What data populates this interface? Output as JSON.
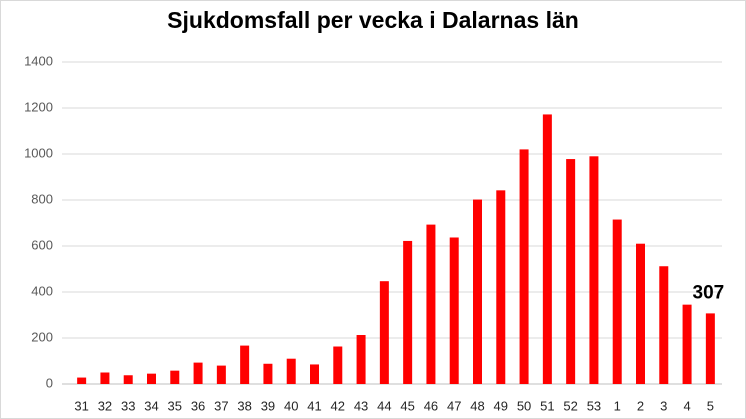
{
  "chart_data": {
    "type": "bar",
    "title": "Sjukdomsfall per vecka i Dalarnas län",
    "categories": [
      "31",
      "32",
      "33",
      "34",
      "35",
      "36",
      "37",
      "38",
      "39",
      "40",
      "41",
      "42",
      "43",
      "44",
      "45",
      "46",
      "47",
      "48",
      "49",
      "50",
      "51",
      "52",
      "53",
      "1",
      "2",
      "3",
      "4",
      "5"
    ],
    "values": [
      28,
      50,
      38,
      45,
      58,
      93,
      80,
      167,
      88,
      110,
      85,
      163,
      213,
      447,
      622,
      693,
      637,
      802,
      842,
      1020,
      1172,
      978,
      990,
      715,
      610,
      512,
      345,
      307
    ],
    "color": "#ff0000",
    "ylim": [
      0,
      1400
    ],
    "yticks": [
      0,
      200,
      400,
      600,
      800,
      1000,
      1200,
      1400
    ],
    "grid": true
  }
}
